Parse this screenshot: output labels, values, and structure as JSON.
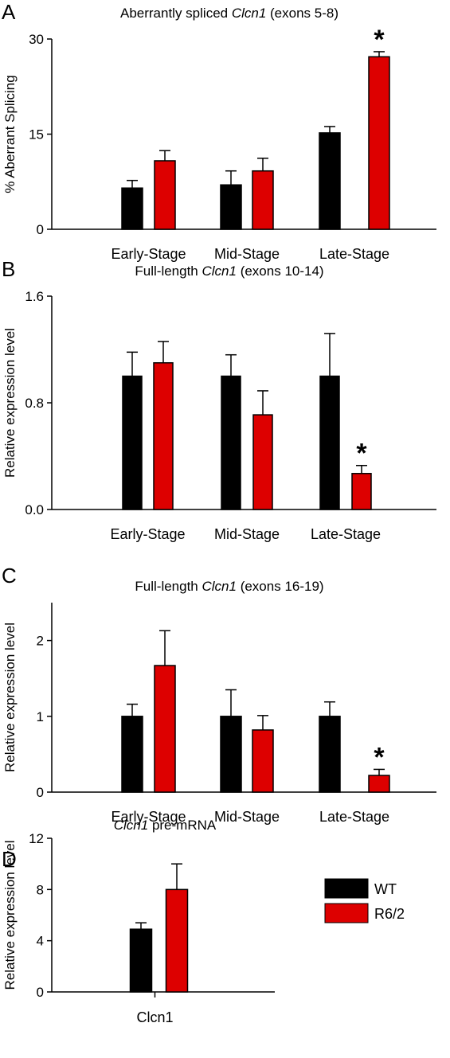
{
  "chart_data": [
    {
      "type": "bar",
      "panel": "A",
      "title_parts": [
        {
          "text": "Aberrantly spliced ",
          "italic": false
        },
        {
          "text": "Clcn1",
          "italic": true
        },
        {
          "text": " (exons 5-8)",
          "italic": false
        }
      ],
      "ylabel": "% Aberrant Splicing",
      "yticks": [
        "0",
        "15",
        "30"
      ],
      "ylim": [
        0,
        30
      ],
      "categories": [
        "Early-Stage",
        "Mid-Stage",
        "Late-Stage"
      ],
      "series": [
        {
          "name": "WT",
          "color": "#000000",
          "values": [
            6.5,
            7.0,
            15.2
          ],
          "errors": [
            1.2,
            2.2,
            1.0
          ]
        },
        {
          "name": "R6/2",
          "color": "#dd0000",
          "values": [
            10.8,
            9.2,
            27.2
          ],
          "errors": [
            1.6,
            2.0,
            0.8
          ]
        }
      ],
      "significance": [
        {
          "category": "Late-Stage",
          "series": "R6/2",
          "label": "*"
        }
      ]
    },
    {
      "type": "bar",
      "panel": "B",
      "title_parts": [
        {
          "text": "Full-length ",
          "italic": false
        },
        {
          "text": "Clcn1",
          "italic": true
        },
        {
          "text": " (exons 10-14)",
          "italic": false
        }
      ],
      "ylabel": "Relative expression level",
      "yticks": [
        "0.0",
        "0.8",
        "1.6"
      ],
      "ylim": [
        0,
        1.6
      ],
      "categories": [
        "Early-Stage",
        "Mid-Stage",
        "Late-Stage"
      ],
      "series": [
        {
          "name": "WT",
          "color": "#000000",
          "values": [
            1.0,
            1.0,
            1.0
          ],
          "errors": [
            0.18,
            0.16,
            0.32
          ]
        },
        {
          "name": "R6/2",
          "color": "#dd0000",
          "values": [
            1.1,
            0.71,
            0.27
          ],
          "errors": [
            0.16,
            0.18,
            0.06
          ]
        }
      ],
      "significance": [
        {
          "category": "Late-Stage",
          "series": "R6/2",
          "label": "*"
        }
      ]
    },
    {
      "type": "bar",
      "panel": "C",
      "title_parts": [
        {
          "text": "Full-length ",
          "italic": false
        },
        {
          "text": "Clcn1",
          "italic": true
        },
        {
          "text": " (exons 16-19)",
          "italic": false
        }
      ],
      "ylabel": "Relative expression level",
      "yticks": [
        "0",
        "1",
        "2"
      ],
      "ylim": [
        0,
        2.5
      ],
      "categories": [
        "Early-Stage",
        "Mid-Stage",
        "Late-Stage"
      ],
      "series": [
        {
          "name": "WT",
          "color": "#000000",
          "values": [
            1.0,
            1.0,
            1.0
          ],
          "errors": [
            0.16,
            0.35,
            0.19
          ]
        },
        {
          "name": "R6/2",
          "color": "#dd0000",
          "values": [
            1.67,
            0.82,
            0.22
          ],
          "errors": [
            0.46,
            0.19,
            0.08
          ]
        }
      ],
      "significance": [
        {
          "category": "Late-Stage",
          "series": "R6/2",
          "label": "*"
        }
      ]
    },
    {
      "type": "bar",
      "panel": "D",
      "title_parts": [
        {
          "text": "Clcn1",
          "italic": true
        },
        {
          "text": " pre-mRNA",
          "italic": false
        }
      ],
      "ylabel": "Relative expression level",
      "yticks": [
        "0",
        "4",
        "8",
        "12"
      ],
      "ylim": [
        0,
        12
      ],
      "categories": [
        "Clcn1"
      ],
      "series": [
        {
          "name": "WT",
          "color": "#000000",
          "values": [
            4.9
          ],
          "errors": [
            0.5
          ]
        },
        {
          "name": "R6/2",
          "color": "#dd0000",
          "values": [
            8.0
          ],
          "errors": [
            2.0
          ]
        }
      ],
      "significance": []
    }
  ],
  "legend": {
    "placement": "right of panel D",
    "entries": [
      {
        "label": "WT",
        "color": "#000000"
      },
      {
        "label": "R6/2",
        "color": "#dd0000"
      }
    ]
  }
}
